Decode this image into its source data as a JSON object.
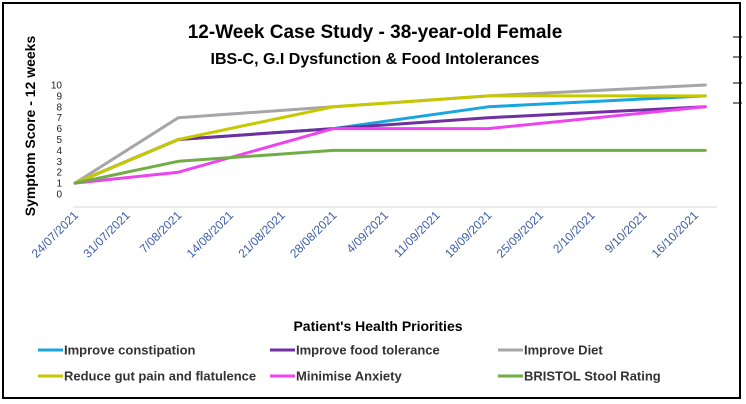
{
  "chart_data": {
    "type": "line",
    "title": "12-Week Case Study - 38-year-old Female",
    "subtitle": "IBS-C, G.I Dysfunction & Food Intolerances",
    "ylabel": "Symptom Score - 12 weeks",
    "xlabel": "",
    "legend_title": "Patient's Health Priorities",
    "legend_position": "bottom",
    "ylim": [
      0,
      10
    ],
    "yticks": [
      0,
      1,
      2,
      3,
      4,
      5,
      6,
      7,
      8,
      9,
      10
    ],
    "grid": false,
    "categories": [
      "24/07/2021",
      "31/07/2021",
      "7/08/2021",
      "14/08/2021",
      "21/08/2021",
      "28/08/2021",
      "4/09/2021",
      "11/09/2021",
      "18/09/2021",
      "25/09/2021",
      "2/10/2021",
      "9/10/2021",
      "16/10/2021"
    ],
    "series": [
      {
        "name": "Improve constipation",
        "color": "#19a6e0",
        "points": [
          [
            0,
            1
          ],
          [
            2,
            5
          ],
          [
            5,
            6
          ],
          [
            8,
            8
          ],
          [
            12.2,
            9
          ]
        ]
      },
      {
        "name": "Improve food tolerance",
        "color": "#7030a0",
        "points": [
          [
            0,
            1
          ],
          [
            2,
            5
          ],
          [
            5,
            6
          ],
          [
            8,
            7
          ],
          [
            12.2,
            8
          ]
        ]
      },
      {
        "name": "Improve Diet",
        "color": "#a6a6a6",
        "points": [
          [
            0,
            1
          ],
          [
            2,
            7
          ],
          [
            5,
            8
          ],
          [
            8,
            9
          ],
          [
            12.2,
            10
          ]
        ]
      },
      {
        "name": "Reduce gut pain and flatulence",
        "color": "#c8c800",
        "points": [
          [
            0,
            1
          ],
          [
            2,
            5
          ],
          [
            5,
            8
          ],
          [
            8,
            9
          ],
          [
            12.2,
            9
          ]
        ]
      },
      {
        "name": "Minimise Anxiety",
        "color": "#ee44ee",
        "points": [
          [
            0,
            1
          ],
          [
            2,
            2
          ],
          [
            5,
            6
          ],
          [
            8,
            6
          ],
          [
            12.2,
            8
          ]
        ]
      },
      {
        "name": "BRISTOL Stool Rating",
        "color": "#70ad47",
        "points": [
          [
            0,
            1
          ],
          [
            2,
            3
          ],
          [
            5,
            4
          ],
          [
            8,
            4
          ],
          [
            12.2,
            4
          ]
        ]
      }
    ]
  }
}
